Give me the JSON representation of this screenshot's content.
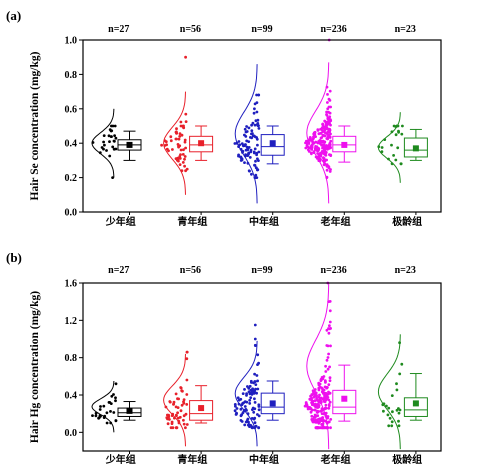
{
  "chart_data": [
    {
      "type": "box",
      "panel_label": "(a)",
      "ylabel": "Hair Se concentration (mg/kg)",
      "ylim": [
        0,
        1.0
      ],
      "yticks": [
        "0.0",
        "0.2",
        "0.4",
        "0.6",
        "0.8",
        "1.0"
      ],
      "ytick_values": [
        0,
        0.2,
        0.4,
        0.6,
        0.8,
        1.0
      ],
      "categories": [
        "少年组",
        "青年组",
        "中年组",
        "老年组",
        "极龄组"
      ],
      "n_labels": [
        "n=27",
        "n=56",
        "n=99",
        "n=236",
        "n=23"
      ],
      "counts": [
        27,
        56,
        99,
        236,
        23
      ],
      "colors": [
        "#000000",
        "#e8202a",
        "#1f1fbf",
        "#ee10ee",
        "#1e8a1e"
      ],
      "groups": [
        {
          "whisker_low": 0.3,
          "q1": 0.36,
          "median": 0.39,
          "q3": 0.42,
          "whisker_high": 0.47,
          "mean": 0.39,
          "data_min": 0.2,
          "data_max": 0.5,
          "curve_low": 0.2,
          "curve_high": 0.6
        },
        {
          "whisker_low": 0.3,
          "q1": 0.35,
          "median": 0.39,
          "q3": 0.44,
          "whisker_high": 0.5,
          "mean": 0.4,
          "data_min": 0.24,
          "data_max": 0.9,
          "curve_low": 0.1,
          "curve_high": 0.7
        },
        {
          "whisker_low": 0.28,
          "q1": 0.33,
          "median": 0.38,
          "q3": 0.45,
          "whisker_high": 0.5,
          "mean": 0.4,
          "data_min": 0.2,
          "data_max": 0.68,
          "curve_low": 0.05,
          "curve_high": 0.86
        },
        {
          "whisker_low": 0.29,
          "q1": 0.35,
          "median": 0.39,
          "q3": 0.44,
          "whisker_high": 0.5,
          "mean": 0.39,
          "data_min": 0.2,
          "data_max": 1.0,
          "curve_low": 0.05,
          "curve_high": 0.87
        },
        {
          "whisker_low": 0.3,
          "q1": 0.32,
          "median": 0.36,
          "q3": 0.43,
          "whisker_high": 0.48,
          "mean": 0.37,
          "data_min": 0.28,
          "data_max": 0.5,
          "curve_low": 0.17,
          "curve_high": 0.58
        }
      ]
    },
    {
      "type": "box",
      "panel_label": "(b)",
      "ylabel": "Hair Hg concentration (mg/kg)",
      "ylim": [
        -0.2,
        1.6
      ],
      "yticks": [
        "0.0",
        "0.4",
        "0.8",
        "1.2",
        "1.6"
      ],
      "ytick_values": [
        0,
        0.4,
        0.8,
        1.2,
        1.6
      ],
      "categories": [
        "少年组",
        "青年组",
        "中年组",
        "老年组",
        "极龄组"
      ],
      "n_labels": [
        "n=27",
        "n=56",
        "n=99",
        "n=236",
        "n=23"
      ],
      "counts": [
        27,
        56,
        99,
        236,
        23
      ],
      "colors": [
        "#000000",
        "#e8202a",
        "#1f1fbf",
        "#ee10ee",
        "#1e8a1e"
      ],
      "groups": [
        {
          "whisker_low": 0.13,
          "q1": 0.17,
          "median": 0.21,
          "q3": 0.26,
          "whisker_high": 0.33,
          "mean": 0.23,
          "data_min": 0.1,
          "data_max": 0.52,
          "curve_low": 0.0,
          "curve_high": 0.55
        },
        {
          "whisker_low": 0.1,
          "q1": 0.13,
          "median": 0.2,
          "q3": 0.34,
          "whisker_high": 0.5,
          "mean": 0.26,
          "data_min": 0.05,
          "data_max": 0.86,
          "curve_low": -0.15,
          "curve_high": 0.84
        },
        {
          "whisker_low": 0.13,
          "q1": 0.2,
          "median": 0.27,
          "q3": 0.42,
          "whisker_high": 0.55,
          "mean": 0.31,
          "data_min": 0.05,
          "data_max": 1.15,
          "curve_low": -0.15,
          "curve_high": 0.98
        },
        {
          "whisker_low": 0.12,
          "q1": 0.2,
          "median": 0.27,
          "q3": 0.45,
          "whisker_high": 0.72,
          "mean": 0.36,
          "data_min": 0.05,
          "data_max": 1.6,
          "curve_low": -0.18,
          "curve_high": 1.6
        },
        {
          "whisker_low": 0.13,
          "q1": 0.17,
          "median": 0.24,
          "q3": 0.37,
          "whisker_high": 0.63,
          "mean": 0.31,
          "data_min": 0.07,
          "data_max": 0.96,
          "curve_low": -0.18,
          "curve_high": 1.05
        }
      ]
    }
  ]
}
